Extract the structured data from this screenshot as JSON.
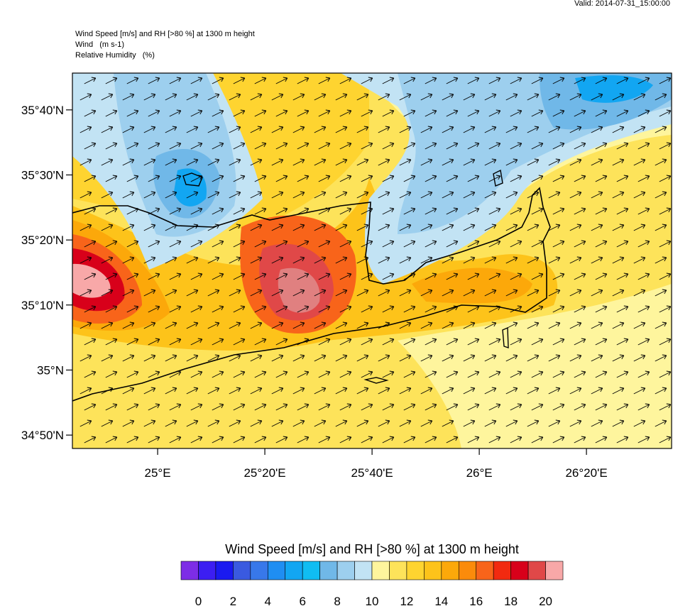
{
  "header": {
    "valid": "Valid: 2014-07-31_15:00:00",
    "title": "Wind Speed [m/s] and RH [>80 %] at 1300 m height",
    "wind": "Wind   (m s-1)",
    "rh": "Relative Humidity   (%)"
  },
  "map": {
    "lat_range": [
      34.799,
      35.761
    ],
    "lon_range": [
      24.735,
      26.598
    ],
    "lat_ticks": [
      {
        "value": 35.6667,
        "label": "35°40'N"
      },
      {
        "value": 35.5,
        "label": "35°30'N"
      },
      {
        "value": 35.3333,
        "label": "35°20'N"
      },
      {
        "value": 35.1667,
        "label": "35°10'N"
      },
      {
        "value": 35,
        "label": "35°N"
      },
      {
        "value": 34.8333,
        "label": "34°50'N"
      }
    ],
    "lon_ticks": [
      {
        "value": 25,
        "label": "25°E"
      },
      {
        "value": 25.3333,
        "label": "25°20'E"
      },
      {
        "value": 25.6667,
        "label": "25°40'E"
      },
      {
        "value": 26,
        "label": "26°E"
      },
      {
        "value": 26.3333,
        "label": "26°20'E"
      }
    ]
  },
  "colorbar": {
    "title": "Wind Speed [m/s] and RH [>80 %] at 1300 m height",
    "colors": [
      "#7d2de6",
      "#3c1ef2",
      "#1a1af0",
      "#3a5ae0",
      "#3878ea",
      "#1f8ef2",
      "#12a6f2",
      "#10bdf2",
      "#70b8e8",
      "#9dcfee",
      "#c2e3f4",
      "#fef59d",
      "#fde35a",
      "#fed430",
      "#fdc31a",
      "#fca80a",
      "#fb8b0b",
      "#f8641a",
      "#f22a10",
      "#d8001a",
      "#e04848",
      "#f8a8a8"
    ],
    "ticks": [
      0,
      2,
      4,
      6,
      8,
      10,
      12,
      14,
      16,
      18,
      20
    ]
  }
}
